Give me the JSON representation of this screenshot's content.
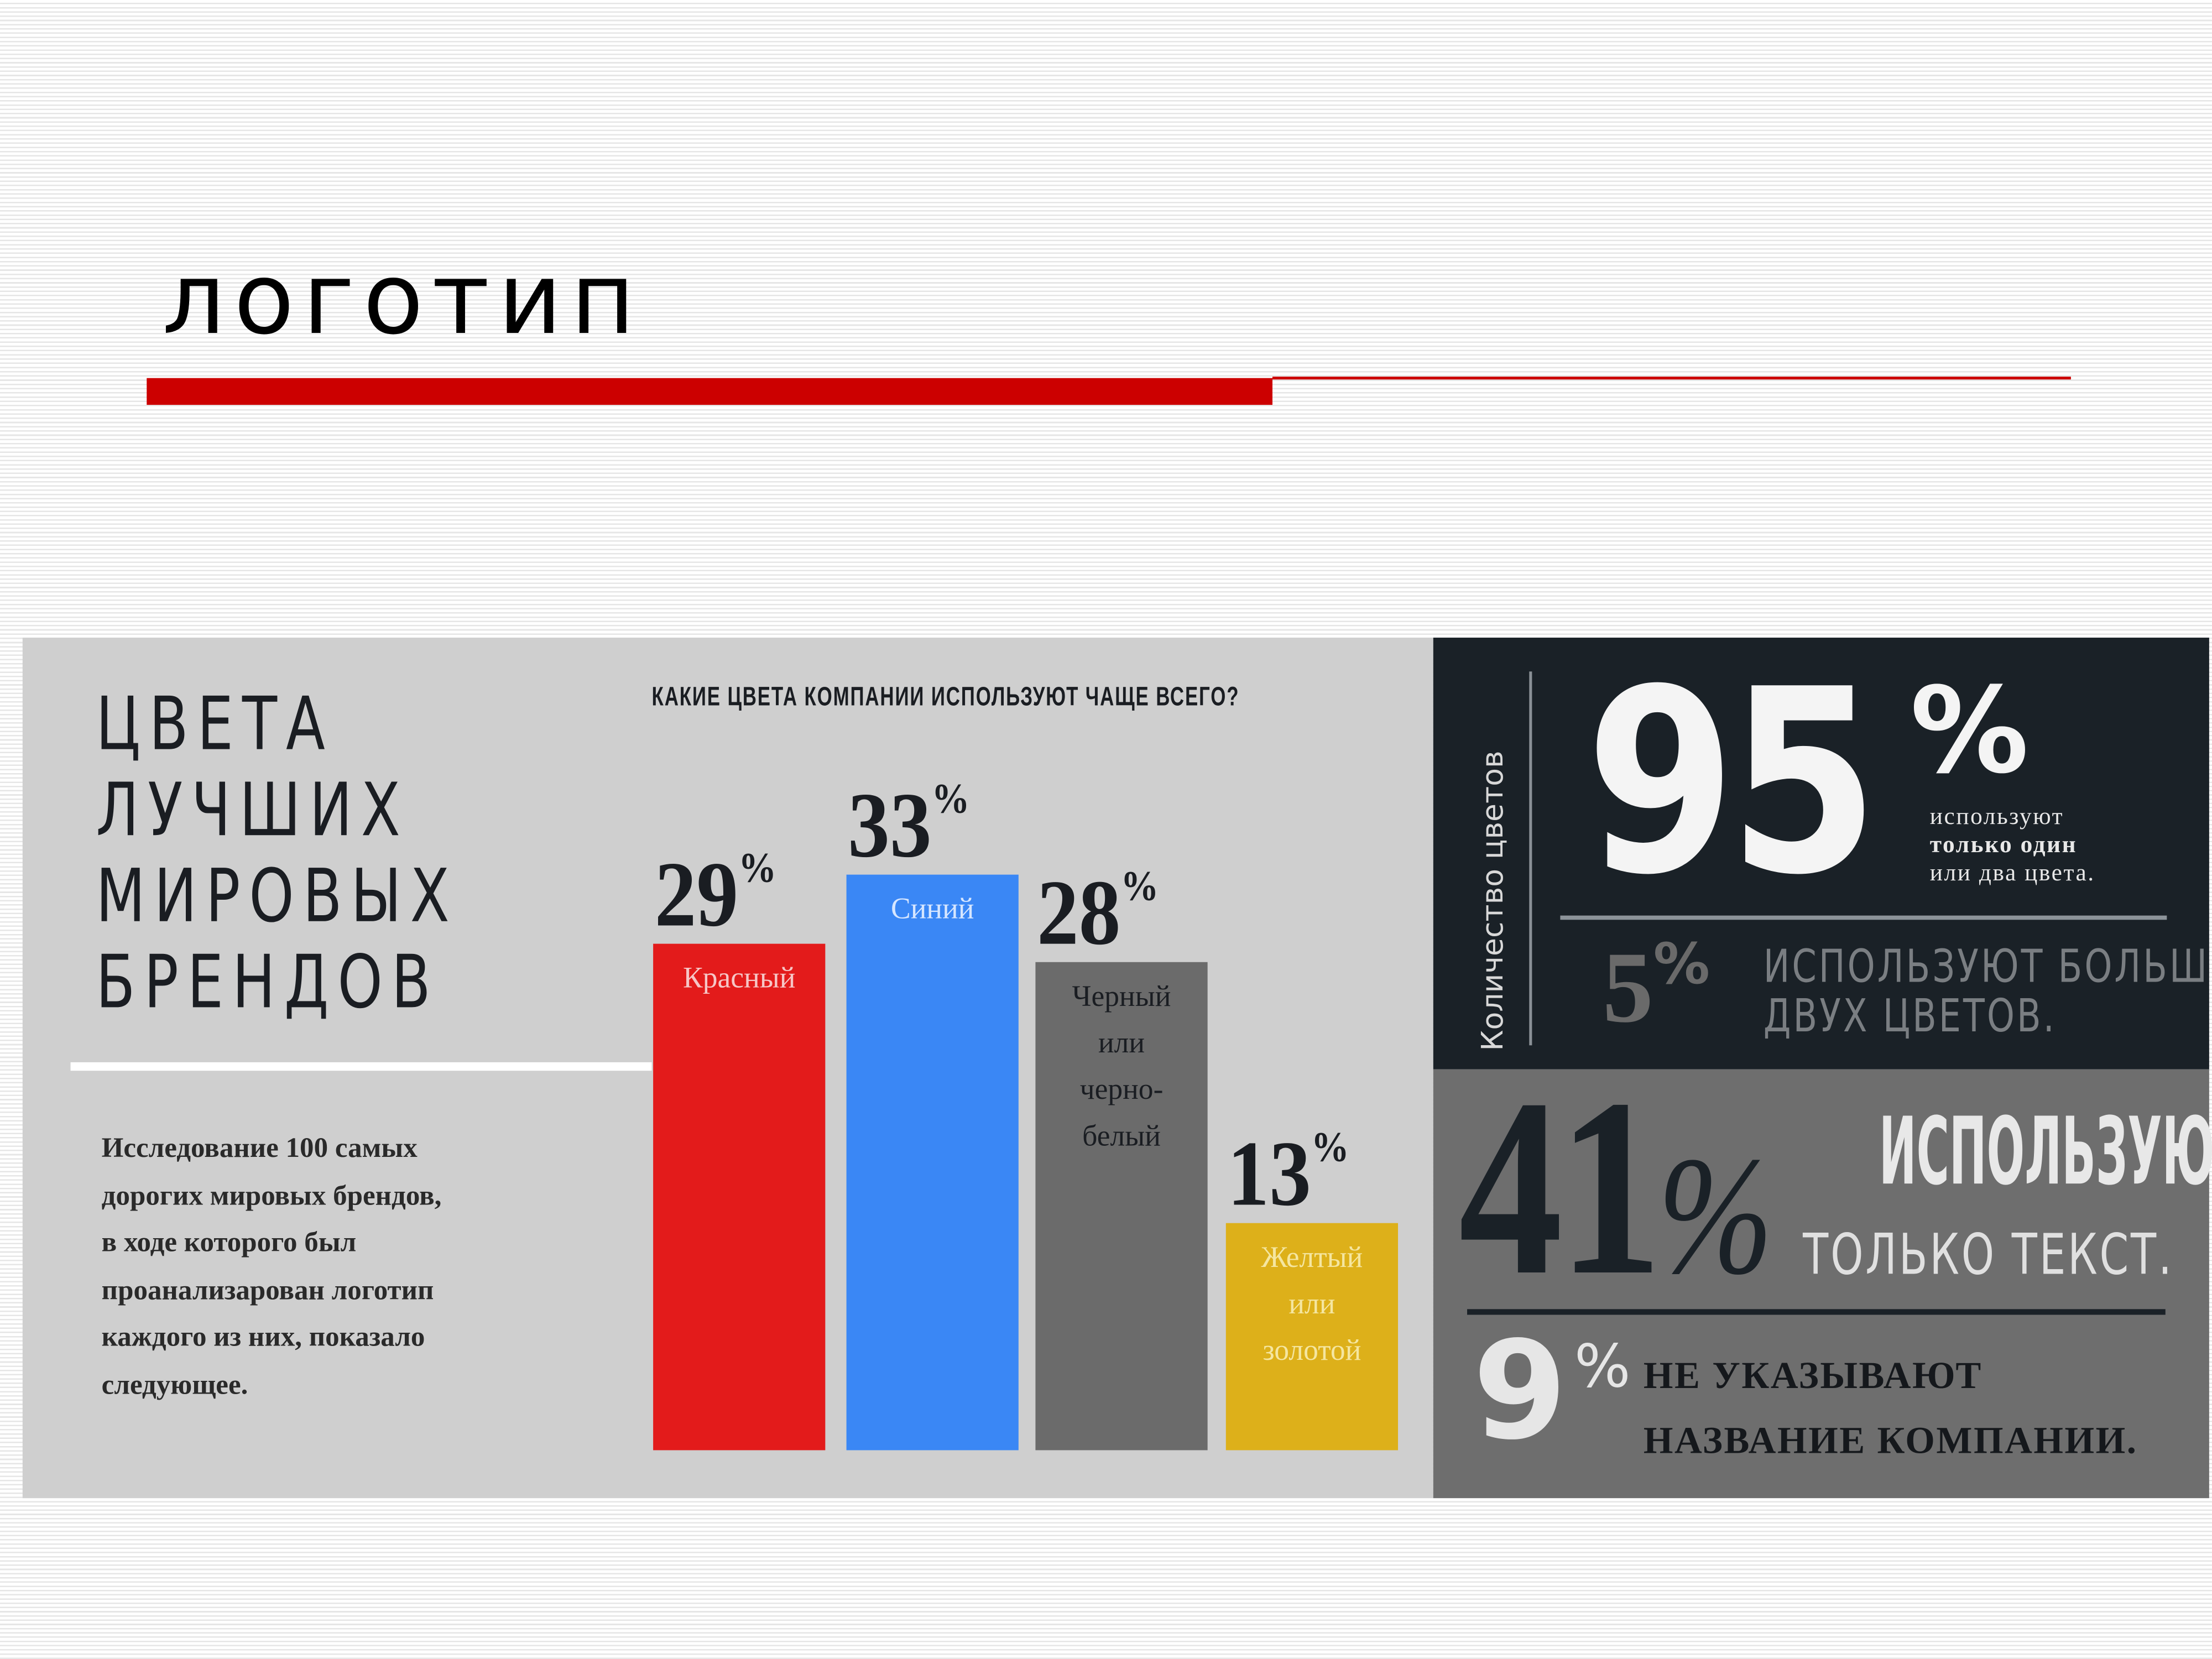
{
  "slide": {
    "title": "логотип",
    "accent_color": "#cc0000"
  },
  "infographic": {
    "heading_lines": [
      "ЦВЕТА",
      "ЛУЧШИХ",
      "МИРОВЫХ",
      "БРЕНДОВ"
    ],
    "description_lines": [
      "Исследование 100 самых",
      "дорогих мировых брендов,",
      "в ходе которого был",
      "проанализарован логотип",
      "каждого из них, показало",
      "следующее."
    ],
    "right_panel": {
      "vertical_label": "Количество цветов",
      "stat95": {
        "value": "95",
        "percent": "%",
        "lines": [
          "используют",
          "только один",
          "или два цвета."
        ]
      },
      "stat5": {
        "value": "5",
        "percent": "%",
        "lines": [
          "ИСПОЛЬЗУЮТ БОЛЬШЕ",
          "ДВУХ ЦВЕТОВ."
        ]
      },
      "stat41": {
        "value": "41",
        "percent": "%",
        "line1": "ИСПОЛЬЗУЮТ",
        "line2": "ТОЛЬКО ТЕКСТ."
      },
      "stat9": {
        "value": "9",
        "percent": "%",
        "lines": [
          "НЕ УКАЗЫВАЮТ",
          "НАЗВАНИЕ КОМПАНИИ."
        ]
      }
    }
  },
  "chart_data": {
    "type": "bar",
    "title": "КАКИЕ ЦВЕТА КОМПАНИИ ИСПОЛЬЗУЮТ ЧАЩЕ ВСЕГО?",
    "categories": [
      "Красный",
      "Синий",
      "Черный или черно-белый",
      "Желтый или золотой"
    ],
    "category_label_lines": [
      [
        "Красный"
      ],
      [
        "Синий"
      ],
      [
        "Черный",
        "или",
        "черно-",
        "белый"
      ],
      [
        "Желтый",
        "или",
        "золотой"
      ]
    ],
    "values": [
      29,
      33,
      28,
      13
    ],
    "value_labels": [
      "29",
      "33",
      "28",
      "13"
    ],
    "value_suffix": "%",
    "bar_colors": [
      "#e31b1b",
      "#3a87f5",
      "#6b6b6b",
      "#ddb01a"
    ],
    "label_colors": [
      "#f6c6c6",
      "#d6e6ff",
      "#1a1d22",
      "#f5e6a0"
    ],
    "ylim": [
      0,
      33
    ],
    "grid": false,
    "axes_visible": false
  }
}
